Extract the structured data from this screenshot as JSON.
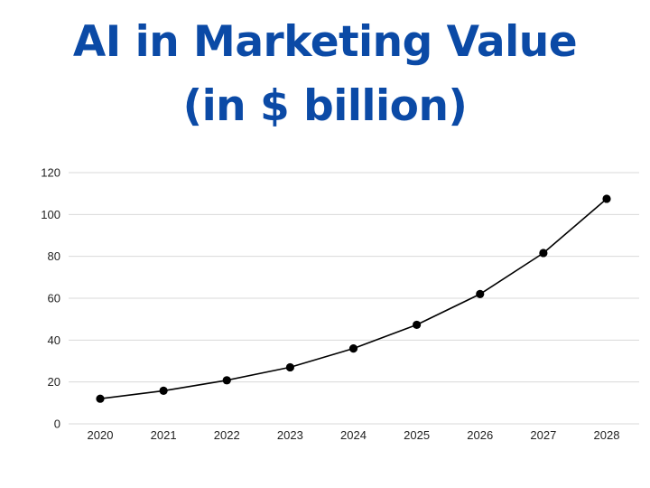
{
  "title_line1": "AI in Marketing Value",
  "title_line2": "(in $ billion)",
  "colors": {
    "title": "#0b4aa6",
    "line": "#000000",
    "marker": "#000000",
    "grid": "#d9d9d9",
    "text": "#222222"
  },
  "chart_data": {
    "type": "line",
    "title": "AI in Marketing Value (in $ billion)",
    "xlabel": "",
    "ylabel": "",
    "categories": [
      "2020",
      "2021",
      "2022",
      "2023",
      "2024",
      "2025",
      "2026",
      "2027",
      "2028"
    ],
    "series": [
      {
        "values": [
          12,
          15.8,
          20.8,
          27,
          36,
          47.3,
          62,
          81.6,
          107.5
        ]
      }
    ],
    "ylim": [
      0,
      120
    ],
    "yticks": [
      0,
      20,
      40,
      60,
      80,
      100,
      120
    ],
    "grid": true,
    "legend": "none",
    "markers": "filled circles"
  }
}
